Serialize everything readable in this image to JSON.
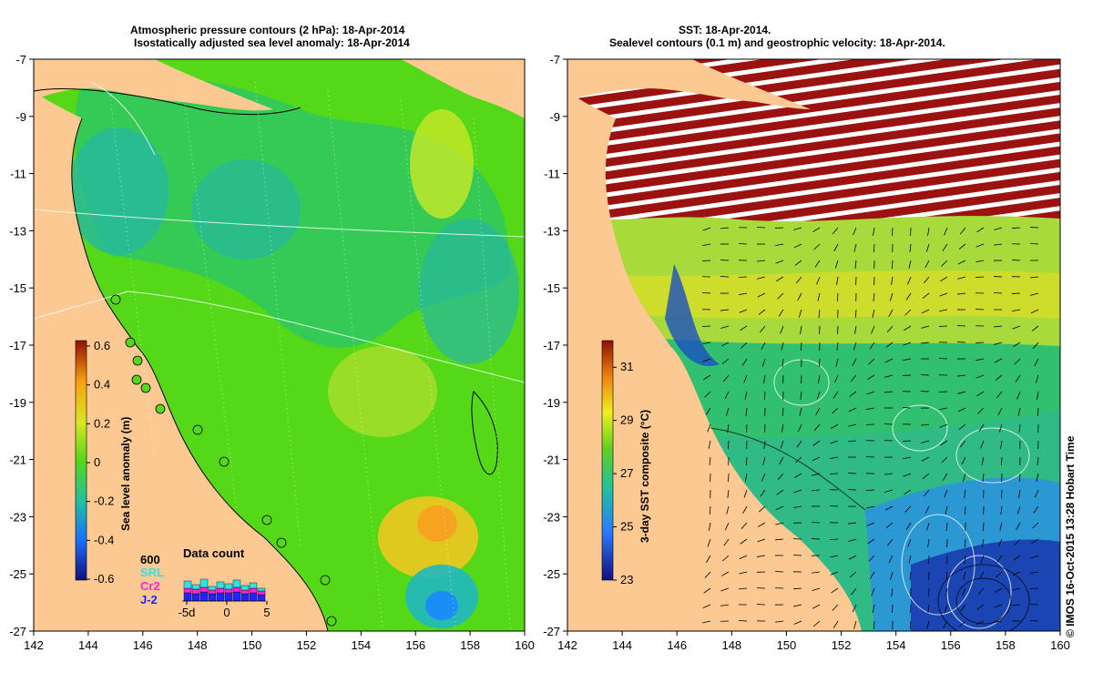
{
  "left_panel": {
    "title_line1": "Atmospheric pressure contours (2 hPa): 18-Apr-2014",
    "title_line2": "Isostatically adjusted sea level anomaly: 18-Apr-2014",
    "colorbar": {
      "label": "Sea level anomaly (m)",
      "ticks": [
        "0.6",
        "0.4",
        "0.2",
        "0",
        "-0.2",
        "-0.4",
        "-0.6"
      ],
      "range": [
        -0.6,
        0.6
      ]
    },
    "data_count": {
      "title": "Data count",
      "max_label": "600",
      "series": [
        {
          "name": "SRL",
          "color": "#33e0e8"
        },
        {
          "name": "Cr2",
          "color": "#ff22dd"
        },
        {
          "name": "J-2",
          "color": "#2222ff"
        }
      ],
      "x_ticks": [
        "-5d",
        "0",
        "5"
      ]
    }
  },
  "right_panel": {
    "title_line1": "SST: 18-Apr-2014.",
    "title_line2": "Sealevel contours (0.1 m) and geostrophic velocity: 18-Apr-2014.",
    "colorbar": {
      "label": "3-day SST composite (°C)",
      "ticks": [
        "31",
        "29",
        "27",
        "25",
        "23"
      ],
      "range": [
        23,
        32
      ]
    }
  },
  "axes": {
    "lon_ticks": [
      "142",
      "144",
      "146",
      "148",
      "150",
      "152",
      "154",
      "156",
      "158",
      "160"
    ],
    "lat_ticks": [
      "-7",
      "-9",
      "-11",
      "-13",
      "-15",
      "-17",
      "-19",
      "-21",
      "-23",
      "-25",
      "-27"
    ],
    "lon_range": [
      142,
      160
    ],
    "lat_range": [
      -27,
      -7
    ]
  },
  "credit": "© IMOS 16-Oct-2015 13:28 Hobart Time",
  "colors": {
    "land": "#fcc992",
    "sla_base": "#55d818",
    "sst_warm": "#9b1210",
    "sst_cool": "#1a3fb0"
  }
}
